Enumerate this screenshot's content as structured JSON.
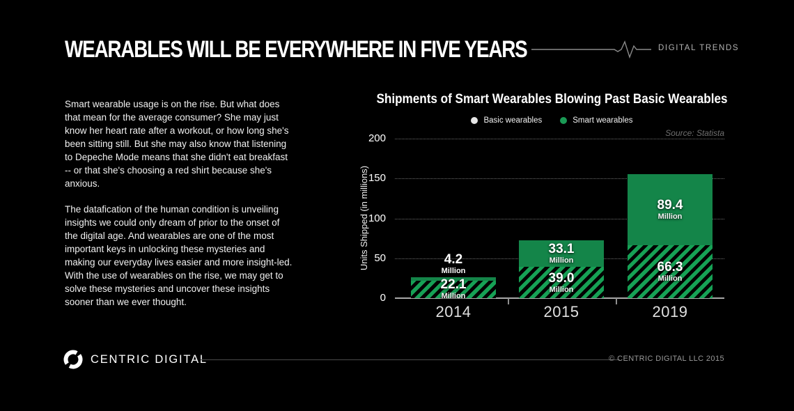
{
  "header": {
    "title": "WEARABLES WILL BE EVERYWHERE IN FIVE YEARS",
    "brand": "DIGITAL TRENDS"
  },
  "article": {
    "paragraphs": [
      "Smart wearable usage is on the rise. But what does\nthat mean for the average consumer? She may just\nknow her heart rate after a workout, or how long she's\nbeen sitting still. But she may also know that listening\nto Depeche Mode means that she didn't eat breakfast\n-- or that she's choosing a red shirt because she's\nanxious.",
      "The datafication of the human condition is unveiling\ninsights we could only dream of prior to the onset of\nthe digital age. And wearables are one of the most\nimportant keys in unlocking these mysteries and\nmaking our everyday lives easier and more insight-led.\nWith the use of wearables on the rise, we may get to\nsolve these mysteries and uncover these insights\nsooner than we ever thought."
    ]
  },
  "chart_data": {
    "type": "bar",
    "stacked": true,
    "title": "Shipments of Smart Wearables Blowing Past Basic Wearables",
    "source": "Source: Statista",
    "ylabel": "Units Shipped (in millions)",
    "categories": [
      "2014",
      "2015",
      "2019"
    ],
    "series": [
      {
        "name": "Smart wearables",
        "style": "solid",
        "color": "#148549",
        "values": [
          4.2,
          33.1,
          89.4
        ],
        "display": [
          "4.2",
          "33.1",
          "89.4"
        ]
      },
      {
        "name": "Basic wearables",
        "style": "hatched",
        "color": "#16a155",
        "values": [
          22.1,
          39.0,
          66.3
        ],
        "display": [
          "22.1",
          "39.0",
          "66.3"
        ]
      }
    ],
    "legend": [
      {
        "label": "Basic wearables",
        "color": "#e6e6e6"
      },
      {
        "label": "Smart wearables",
        "color": "#1a9a55"
      }
    ],
    "yticks": [
      0,
      50,
      100,
      150,
      200
    ],
    "ylim": [
      0,
      200
    ],
    "unit_suffix": "Million",
    "grid": "dotted-horizontal",
    "legend_position": "top-center"
  },
  "footer": {
    "logo_text": "CENTRIC DIGITAL",
    "copyright": "© CENTRIC DIGITAL LLC 2015"
  }
}
